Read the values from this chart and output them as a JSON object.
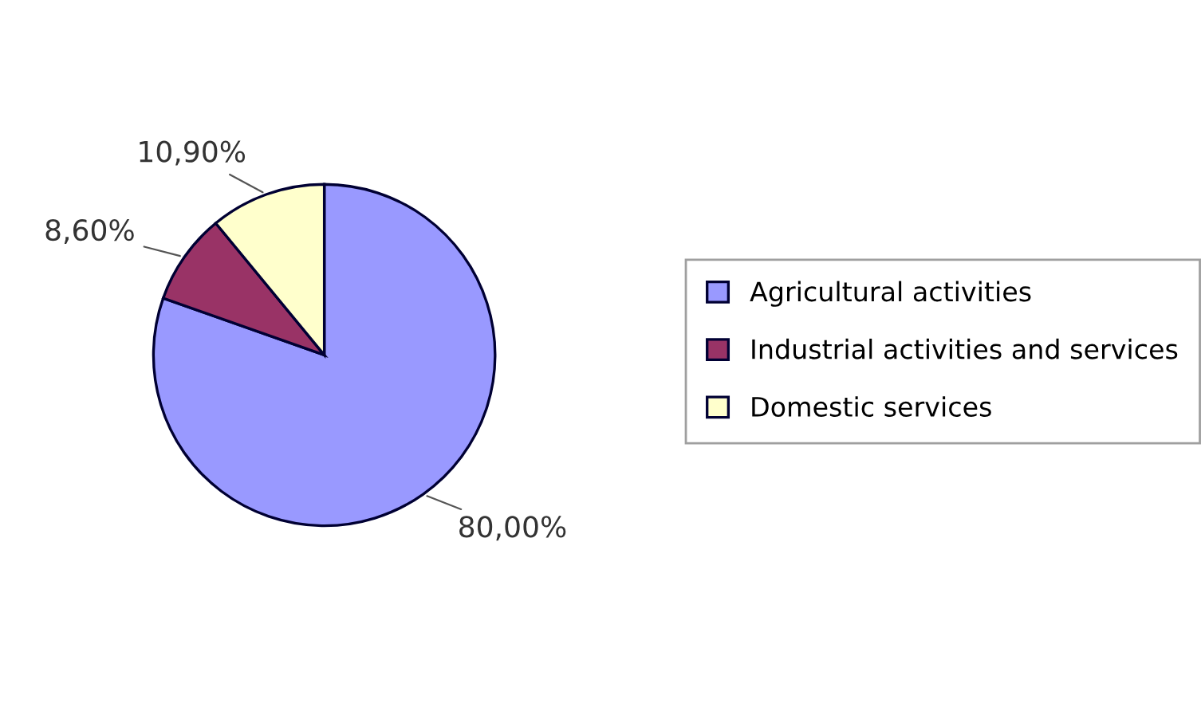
{
  "chart_data": {
    "type": "pie",
    "categories": [
      "Agricultural activities",
      "Industrial activities and services",
      "Domestic services"
    ],
    "values": [
      80.0,
      8.6,
      10.9
    ],
    "value_labels": [
      "80,00%",
      "8,60%",
      "10,90%"
    ],
    "colors": [
      "#9999ff",
      "#993366",
      "#ffffcc"
    ],
    "legend": "right"
  }
}
